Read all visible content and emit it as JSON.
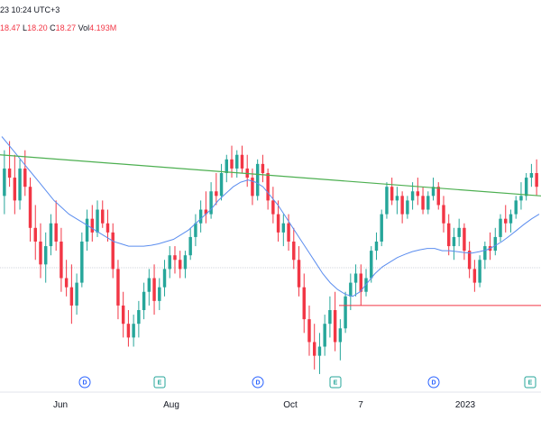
{
  "legend": {
    "timestamp": "23 10:24 UTC+3",
    "high_label": "18.47",
    "low_prefix": "L",
    "low": "18.20",
    "close_prefix": "C",
    "close": "18.27",
    "vol_prefix": "Vol",
    "volume": "4.193M"
  },
  "colors": {
    "up": "#26a69a",
    "down": "#f23645",
    "ma": "#5b8def",
    "trendline": "#4caf50",
    "support": "#f23645",
    "badge": "#26a69a",
    "badge_div": "#2962ff"
  },
  "chart_data": {
    "type": "candlestick",
    "x_labels": [
      "Jun",
      "Aug",
      "Oct",
      "7",
      "2023"
    ],
    "event_badges": [
      "D",
      "E",
      "D",
      "E",
      "D",
      "E"
    ],
    "price_min": 15.0,
    "price_max": 22.5,
    "candles": [
      [
        19.0,
        20.0,
        18.6,
        19.6
      ],
      [
        19.6,
        20.2,
        19.2,
        19.4
      ],
      [
        19.4,
        19.9,
        18.6,
        18.9
      ],
      [
        18.9,
        19.8,
        18.7,
        19.6
      ],
      [
        19.6,
        20.0,
        19.0,
        19.2
      ],
      [
        19.2,
        19.4,
        18.0,
        18.3
      ],
      [
        18.3,
        18.8,
        17.6,
        18.0
      ],
      [
        18.0,
        18.4,
        17.2,
        17.5
      ],
      [
        17.5,
        18.2,
        17.1,
        17.9
      ],
      [
        17.9,
        18.6,
        17.7,
        18.4
      ],
      [
        18.4,
        18.9,
        17.8,
        18.0
      ],
      [
        18.0,
        18.3,
        16.9,
        17.2
      ],
      [
        17.2,
        17.6,
        16.8,
        17.0
      ],
      [
        17.0,
        17.5,
        16.2,
        16.6
      ],
      [
        16.6,
        17.3,
        16.4,
        17.1
      ],
      [
        17.1,
        18.2,
        17.0,
        18.0
      ],
      [
        18.0,
        18.7,
        17.8,
        18.5
      ],
      [
        18.5,
        18.8,
        18.0,
        18.2
      ],
      [
        18.2,
        18.9,
        18.1,
        18.7
      ],
      [
        18.7,
        18.9,
        18.3,
        18.4
      ],
      [
        18.4,
        18.7,
        18.0,
        18.2
      ],
      [
        18.2,
        18.4,
        17.2,
        17.4
      ],
      [
        17.4,
        17.6,
        16.3,
        16.6
      ],
      [
        16.6,
        16.9,
        15.9,
        16.2
      ],
      [
        16.2,
        16.5,
        15.7,
        15.9
      ],
      [
        15.9,
        16.4,
        15.7,
        16.2
      ],
      [
        16.2,
        16.7,
        15.9,
        16.5
      ],
      [
        16.5,
        17.1,
        16.3,
        16.9
      ],
      [
        16.9,
        17.4,
        16.6,
        17.2
      ],
      [
        17.2,
        17.5,
        16.4,
        16.7
      ],
      [
        16.7,
        17.2,
        16.5,
        17.0
      ],
      [
        17.0,
        17.6,
        16.8,
        17.4
      ],
      [
        17.4,
        17.9,
        17.2,
        17.7
      ],
      [
        17.7,
        17.9,
        17.3,
        17.6
      ],
      [
        17.6,
        17.8,
        17.2,
        17.4
      ],
      [
        17.4,
        17.8,
        17.2,
        17.7
      ],
      [
        17.7,
        18.3,
        17.6,
        18.1
      ],
      [
        18.1,
        18.6,
        17.9,
        18.4
      ],
      [
        18.4,
        18.9,
        18.2,
        18.7
      ],
      [
        18.7,
        19.1,
        18.4,
        18.6
      ],
      [
        18.6,
        19.3,
        18.5,
        19.1
      ],
      [
        19.1,
        19.5,
        18.8,
        19.0
      ],
      [
        19.0,
        19.7,
        18.9,
        19.5
      ],
      [
        19.5,
        19.9,
        19.3,
        19.8
      ],
      [
        19.8,
        20.1,
        19.4,
        19.6
      ],
      [
        19.6,
        20.0,
        19.4,
        19.9
      ],
      [
        19.9,
        20.1,
        19.5,
        19.6
      ],
      [
        19.6,
        19.9,
        19.2,
        19.4
      ],
      [
        19.4,
        19.6,
        18.8,
        19.0
      ],
      [
        19.0,
        19.8,
        18.9,
        19.7
      ],
      [
        19.7,
        19.9,
        19.3,
        19.5
      ],
      [
        19.5,
        19.6,
        18.7,
        18.9
      ],
      [
        18.9,
        19.2,
        18.4,
        18.6
      ],
      [
        18.6,
        18.9,
        18.0,
        18.2
      ],
      [
        18.2,
        18.6,
        17.9,
        18.4
      ],
      [
        18.4,
        18.6,
        17.8,
        18.0
      ],
      [
        18.0,
        18.3,
        17.4,
        17.6
      ],
      [
        17.6,
        17.9,
        16.8,
        17.0
      ],
      [
        17.0,
        17.3,
        16.0,
        16.3
      ],
      [
        16.3,
        16.6,
        15.5,
        15.8
      ],
      [
        15.8,
        16.2,
        15.2,
        15.5
      ],
      [
        15.5,
        16.0,
        15.1,
        15.7
      ],
      [
        15.7,
        16.4,
        15.5,
        16.2
      ],
      [
        16.2,
        16.8,
        15.9,
        16.5
      ],
      [
        16.5,
        16.9,
        15.6,
        15.8
      ],
      [
        15.8,
        16.3,
        15.4,
        16.1
      ],
      [
        16.1,
        16.9,
        16.0,
        16.8
      ],
      [
        16.8,
        17.3,
        16.5,
        17.1
      ],
      [
        17.1,
        17.5,
        16.8,
        17.3
      ],
      [
        17.3,
        17.5,
        16.6,
        16.9
      ],
      [
        16.9,
        17.4,
        16.8,
        17.2
      ],
      [
        17.2,
        17.9,
        17.1,
        17.8
      ],
      [
        17.8,
        18.2,
        17.6,
        18.0
      ],
      [
        18.0,
        18.7,
        17.9,
        18.6
      ],
      [
        18.6,
        19.3,
        18.5,
        19.2
      ],
      [
        19.2,
        19.4,
        18.8,
        18.9
      ],
      [
        18.9,
        19.2,
        18.6,
        19.0
      ],
      [
        19.0,
        19.1,
        18.4,
        18.6
      ],
      [
        18.6,
        19.0,
        18.5,
        18.9
      ],
      [
        18.9,
        19.3,
        18.7,
        19.1
      ],
      [
        19.1,
        19.4,
        18.8,
        19.0
      ],
      [
        19.0,
        19.2,
        18.6,
        18.7
      ],
      [
        18.7,
        19.1,
        18.6,
        19.0
      ],
      [
        19.0,
        19.4,
        18.9,
        19.2
      ],
      [
        19.2,
        19.3,
        18.7,
        18.8
      ],
      [
        18.8,
        19.0,
        18.2,
        18.4
      ],
      [
        18.4,
        18.6,
        17.7,
        17.9
      ],
      [
        17.9,
        18.3,
        17.6,
        18.1
      ],
      [
        18.1,
        18.5,
        17.9,
        18.3
      ],
      [
        18.3,
        18.4,
        17.6,
        17.8
      ],
      [
        17.8,
        18.0,
        17.2,
        17.4
      ],
      [
        17.4,
        17.6,
        16.9,
        17.1
      ],
      [
        17.1,
        17.7,
        17.0,
        17.6
      ],
      [
        17.6,
        18.0,
        17.4,
        17.9
      ],
      [
        17.9,
        18.2,
        17.6,
        17.8
      ],
      [
        17.8,
        18.3,
        17.7,
        18.1
      ],
      [
        18.1,
        18.6,
        18.0,
        18.5
      ],
      [
        18.5,
        18.8,
        18.2,
        18.4
      ],
      [
        18.4,
        18.7,
        18.2,
        18.6
      ],
      [
        18.6,
        19.0,
        18.5,
        18.9
      ],
      [
        18.9,
        19.3,
        18.7,
        19.0
      ],
      [
        19.0,
        19.5,
        18.9,
        19.4
      ],
      [
        19.4,
        19.7,
        19.2,
        19.5
      ],
      [
        19.5,
        19.8,
        19.0,
        19.2
      ]
    ],
    "ma_line": [
      20.3,
      20.1,
      19.9,
      19.7,
      19.5,
      19.3,
      19.1,
      18.9,
      18.75,
      18.6,
      18.5,
      18.4,
      18.3,
      18.2,
      18.1,
      18.0,
      17.95,
      17.9,
      17.9,
      17.9,
      17.92,
      17.95,
      18.0,
      18.05,
      18.15,
      18.25,
      18.4,
      18.55,
      18.7,
      18.9,
      19.05,
      19.2,
      19.3,
      19.35,
      19.3,
      19.2,
      19.0,
      18.8,
      18.55,
      18.3,
      18.05,
      17.8,
      17.55,
      17.3,
      17.1,
      16.95,
      16.85,
      16.8,
      16.9,
      17.1,
      17.3,
      17.45,
      17.55,
      17.65,
      17.72,
      17.78,
      17.82,
      17.85,
      17.85,
      17.8,
      17.8,
      17.78,
      17.76,
      17.75,
      17.78,
      17.82,
      17.9,
      18.0,
      18.12,
      18.25,
      18.38,
      18.5,
      18.6
    ],
    "trendline": {
      "start": 19.9,
      "end": 19.0
    },
    "support_level": 16.6
  }
}
